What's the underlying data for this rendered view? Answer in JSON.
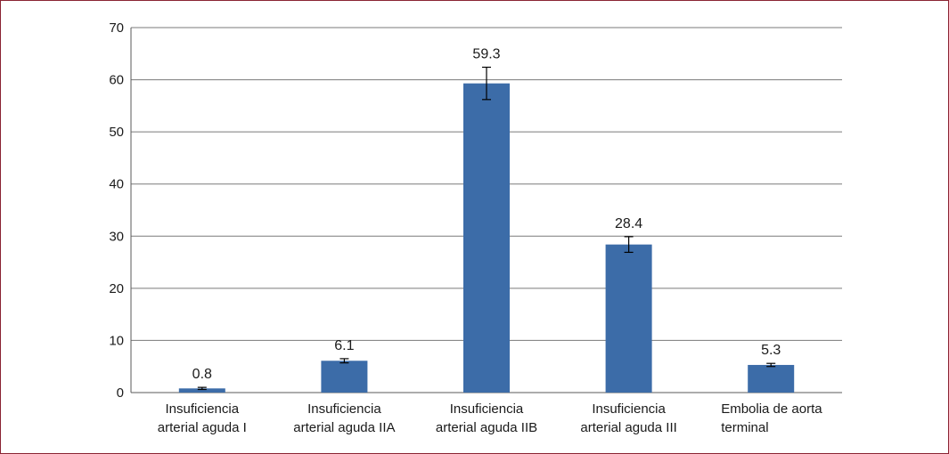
{
  "chart_data": {
    "type": "bar",
    "categories": [
      [
        "Insuficiencia",
        "arterial aguda I"
      ],
      [
        "Insuficiencia",
        "arterial aguda IIA"
      ],
      [
        "Insuficiencia",
        "arterial aguda IIB"
      ],
      [
        "Insuficiencia",
        "arterial aguda III"
      ],
      [
        "Embolia de aorta",
        "terminal"
      ]
    ],
    "values": [
      0.8,
      6.1,
      59.3,
      28.4,
      5.3
    ],
    "data_labels": [
      "0.8",
      "6.1",
      "59.3",
      "28.4",
      "5.3"
    ],
    "error_bars": [
      0.2,
      0.4,
      3.1,
      1.5,
      0.3
    ],
    "ylim": [
      0,
      70
    ],
    "yticks": [
      0,
      10,
      20,
      30,
      40,
      50,
      60,
      70
    ],
    "grid": true,
    "bar_color": "#3c6ca8",
    "grid_color": "#7a7a7a",
    "frame_color": "#8a2433"
  }
}
